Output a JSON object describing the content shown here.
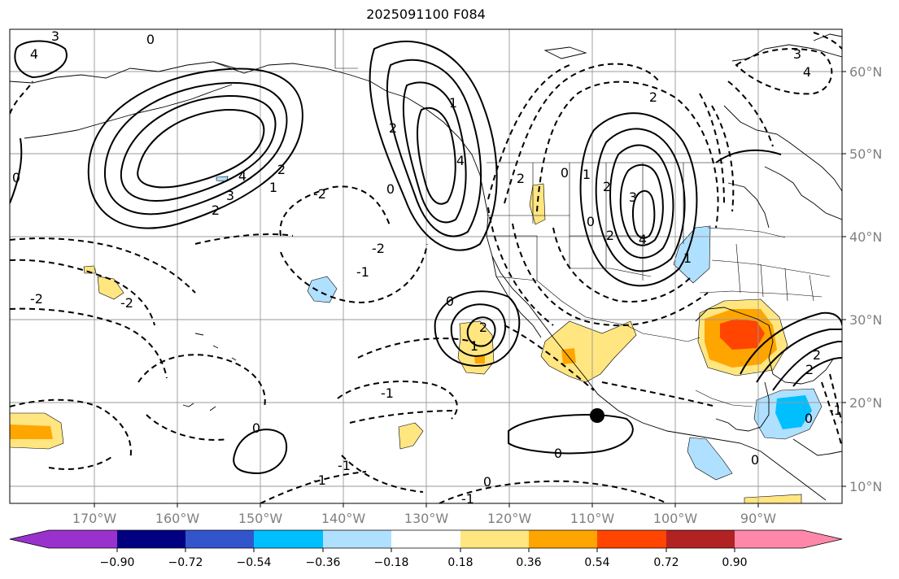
{
  "title": "2025091100 F084",
  "map": {
    "lon_labels": [
      "170°W",
      "160°W",
      "150°W",
      "140°W",
      "130°W",
      "120°W",
      "110°W",
      "100°W",
      "90°W"
    ],
    "lat_labels": [
      "60°N",
      "50°N",
      "40°N",
      "30°N",
      "20°N",
      "10°N"
    ],
    "contour_labels": [
      "3",
      "4",
      "4",
      "3",
      "2",
      "0",
      "1",
      "2",
      "2",
      "4",
      "0",
      "1",
      "2",
      "3",
      "4",
      "2",
      "0",
      "0",
      "2",
      "2",
      "1",
      "3",
      "4",
      "0",
      "1",
      "2",
      "-2",
      "-2",
      "-1",
      "-2",
      "-2",
      "0",
      "-1",
      "-1",
      "-1",
      "0",
      "0",
      "0",
      "1",
      "2",
      "0",
      "-1",
      "-1",
      "2",
      "0"
    ],
    "marker": "point"
  },
  "colorbar": {
    "tick_labels": [
      "−0.90",
      "−0.72",
      "−0.54",
      "−0.36",
      "−0.18",
      "0.18",
      "0.36",
      "0.54",
      "0.72",
      "0.90"
    ],
    "colors": [
      "#9932cc",
      "#000080",
      "#3355cc",
      "#00bfff",
      "#b0e0ff",
      "#ffffff",
      "#ffe680",
      "#ffa500",
      "#ff4500",
      "#b22222",
      "#ff88aa"
    ]
  }
}
